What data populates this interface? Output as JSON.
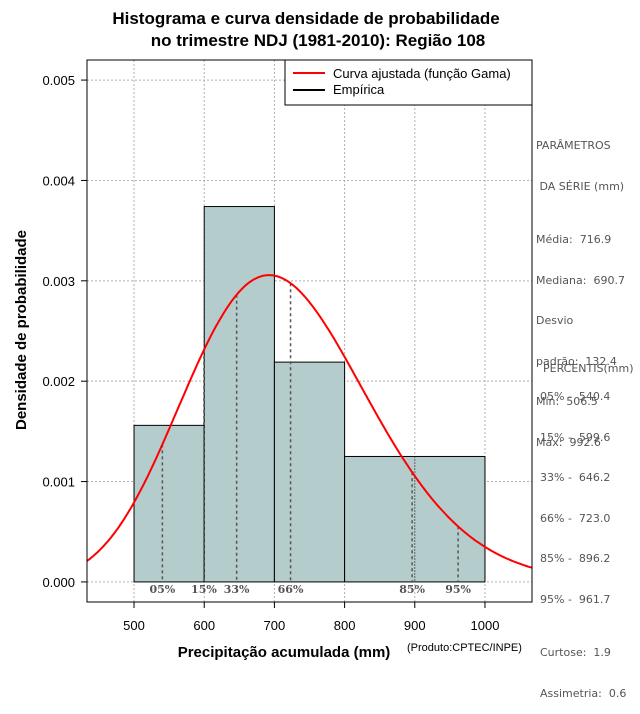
{
  "chart_data": {
    "type": "histogram",
    "title": [
      "Histograma e curva densidade de probabilidade",
      "no trimestre NDJ (1981-2010): Região 108"
    ],
    "xlabel": "Precipitação acumulada (mm)",
    "ylabel": "Densidade de probabilidade",
    "credit": "(Produto:CPTEC/INPE)",
    "xlim": [
      433,
      1067
    ],
    "ylim": [
      -0.0002,
      0.0052
    ],
    "x_ticks": [
      500,
      600,
      700,
      800,
      900,
      1000
    ],
    "y_ticks": [
      0.0,
      0.001,
      0.002,
      0.003,
      0.004,
      0.005
    ],
    "y_tick_labels": [
      "0.000",
      "0.001",
      "0.002",
      "0.003",
      "0.004",
      "0.005"
    ],
    "grid": true,
    "bins": [
      {
        "start": 500,
        "end": 600,
        "density": 0.00156
      },
      {
        "start": 600,
        "end": 700,
        "density": 0.00374
      },
      {
        "start": 700,
        "end": 800,
        "density": 0.00219
      },
      {
        "start": 800,
        "end": 1000,
        "density": 0.00125
      }
    ],
    "fitted_curve": {
      "name": "Curva ajustada (função Gama)",
      "distribution": "gamma",
      "mean": 716.9,
      "sd": 132.4,
      "color": "#ff0000"
    },
    "legend": [
      {
        "label": "Curva ajustada (função Gama)",
        "color": "#ff0000"
      },
      {
        "label": "Empírica",
        "color": "#000000"
      }
    ],
    "legend_position": "top-right",
    "bar_color": "#b4cccc",
    "percentile_lines": [
      {
        "label": "05%",
        "value": 540.4
      },
      {
        "label": "15%",
        "value": 599.6
      },
      {
        "label": "33%",
        "value": 646.2
      },
      {
        "label": "66%",
        "value": 723.0
      },
      {
        "label": "85%",
        "value": 896.2
      },
      {
        "label": "95%",
        "value": 961.7
      }
    ]
  },
  "sidebar": {
    "params_title": [
      "PARÂMETROS",
      " DA SÉRIE (mm)"
    ],
    "params": [
      "Média:  716.9",
      "Mediana:  690.7",
      "Desvio",
      "padrão:  132.4",
      "Mín:  506.5",
      "Máx:  992.6"
    ],
    "percentis_title": "PERCENTIS(mm)",
    "percentis": [
      "05% -  540.4",
      "15% -  599.6",
      "33% -  646.2",
      "66% -  723.0",
      "85% -  896.2",
      "95% -  961.7"
    ],
    "stats": [
      "Curtose:  1.9",
      "Assimetria:  0.6"
    ]
  }
}
